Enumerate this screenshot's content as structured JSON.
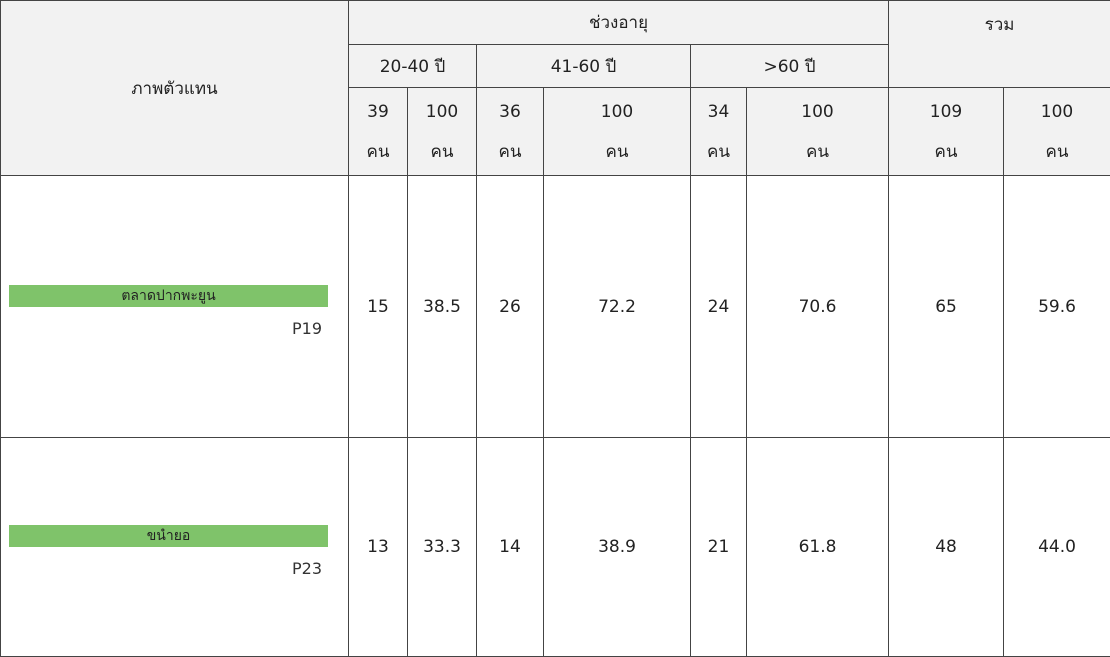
{
  "table": {
    "header": {
      "image_col": "ภาพตัวแทน",
      "age_group": "ช่วงอายุ",
      "total": "รวม",
      "ranges": [
        "20-40 ปี",
        "41-60 ปี",
        ">60 ปี"
      ],
      "counts": [
        [
          "39",
          "คน"
        ],
        [
          "100",
          "คน"
        ],
        [
          "36",
          "คน"
        ],
        [
          "100",
          "คน"
        ],
        [
          "34",
          "คน"
        ],
        [
          "100",
          "คน"
        ],
        [
          "109",
          "คน"
        ],
        [
          "100",
          "คน"
        ]
      ]
    },
    "rows": [
      {
        "code": "P19",
        "caption": "ตลาดปากพะยูน",
        "cells": [
          "15",
          "38.5",
          "26",
          "72.2",
          "24",
          "70.6",
          "65",
          "59.6"
        ]
      },
      {
        "code": "P23",
        "caption": "ขนำยอ",
        "cells": [
          "13",
          "33.3",
          "14",
          "38.9",
          "21",
          "61.8",
          "48",
          "44.0"
        ]
      }
    ]
  }
}
